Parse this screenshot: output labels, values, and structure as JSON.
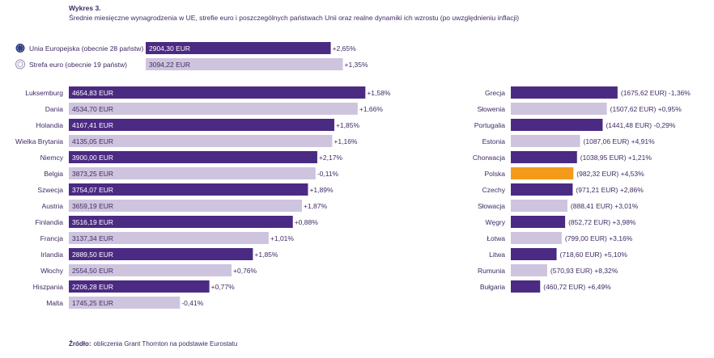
{
  "title": "Wykres 3.",
  "subtitle": "Średnie miesięczne wynagrodzenia w UE, strefie euro i poszczególnych państwach Unii oraz realne dynamiki ich wzrostu (po uwzględnieniu inflacji)",
  "source_label": "Źródło:",
  "source_text": "obliczenia Grant Thornton na podstawie Eurostatu",
  "colors": {
    "dark": "#4b2a83",
    "light": "#cfc4de",
    "highlight": "#f39a1b",
    "text": "#3f2b63"
  },
  "chart_data": [
    {
      "type": "bar",
      "orientation": "horizontal",
      "categories": [
        "Unia Europejska (obecnie 28 państw)",
        "Strefa euro (obecnie 19 państw)"
      ],
      "legend_icons": [
        "eu-flag-icon",
        "euro-circle-icon"
      ],
      "values": [
        2904.3,
        3094.22
      ],
      "value_labels": [
        "2904,30 EUR",
        "3094,22 EUR"
      ],
      "growth_labels": [
        "+2,65%",
        "+1,35%"
      ],
      "styles": [
        "dark",
        "light"
      ]
    },
    {
      "type": "bar",
      "orientation": "horizontal",
      "categories": [
        "Luksemburg",
        "Dania",
        "Holandia",
        "Wielka Brytania",
        "Niemcy",
        "Belgia",
        "Szwecja",
        "Austria",
        "Finlandia",
        "Francja",
        "Irlandia",
        "Włochy",
        "Hiszpania",
        "Malta"
      ],
      "values": [
        4654.83,
        4534.7,
        4167.41,
        4135.05,
        3900.0,
        3873.25,
        3754.07,
        3659.19,
        3516.19,
        3137.34,
        2889.5,
        2554.5,
        2206.28,
        1745.25
      ],
      "value_labels": [
        "4654,83 EUR",
        "4534,70 EUR",
        "4167,41 EUR",
        "4135,05 EUR",
        "3900,00 EUR",
        "3873,25 EUR",
        "3754,07 EUR",
        "3659,19 EUR",
        "3516,19 EUR",
        "3137,34 EUR",
        "2889,50 EUR",
        "2554,50 EUR",
        "2206,28 EUR",
        "1745,25 EUR"
      ],
      "growth_labels": [
        "+1,58%",
        "+1,66%",
        "+1,85%",
        "+1,16%",
        "+2,17%",
        "-0,11%",
        "+1,89%",
        "+1,87%",
        "+0,88%",
        "+1,01%",
        "+1,85%",
        "+0,76%",
        "+0,77%",
        "-0,41%"
      ],
      "styles": [
        "dark",
        "light",
        "dark",
        "light",
        "dark",
        "light",
        "dark",
        "light",
        "dark",
        "light",
        "dark",
        "light",
        "dark",
        "light"
      ]
    },
    {
      "type": "bar",
      "orientation": "horizontal",
      "categories": [
        "Grecja",
        "Słowenia",
        "Portugalia",
        "Estonia",
        "Chorwacja",
        "Polska",
        "Czechy",
        "Słowacja",
        "Węgry",
        "Łotwa",
        "Litwa",
        "Rumunia",
        "Bułgaria"
      ],
      "values": [
        1675.62,
        1507.62,
        1441.48,
        1087.06,
        1038.95,
        982.32,
        971.21,
        888.41,
        852.72,
        799.0,
        718.6,
        570.93,
        460.72
      ],
      "value_labels": [
        "(1675,62 EUR) -1,36%",
        "(1507,62 EUR) +0,95%",
        "(1441,48 EUR) -0,29%",
        "(1087,06 EUR) +4,91%",
        "(1038,95 EUR) +1,21%",
        "(982,32 EUR) +4,53%",
        "(971,21 EUR) +2,86%",
        "(888,41 EUR) +3,01%",
        "(852,72 EUR) +3,98%",
        "(799,00 EUR) +3,16%",
        "(718,60 EUR) +5,10%",
        "(570,93 EUR) +8,32%",
        "(460,72 EUR) +6,49%"
      ],
      "styles": [
        "dark",
        "light",
        "dark",
        "light",
        "dark",
        "highlight",
        "dark",
        "light",
        "dark",
        "light",
        "dark",
        "light",
        "dark"
      ]
    }
  ]
}
